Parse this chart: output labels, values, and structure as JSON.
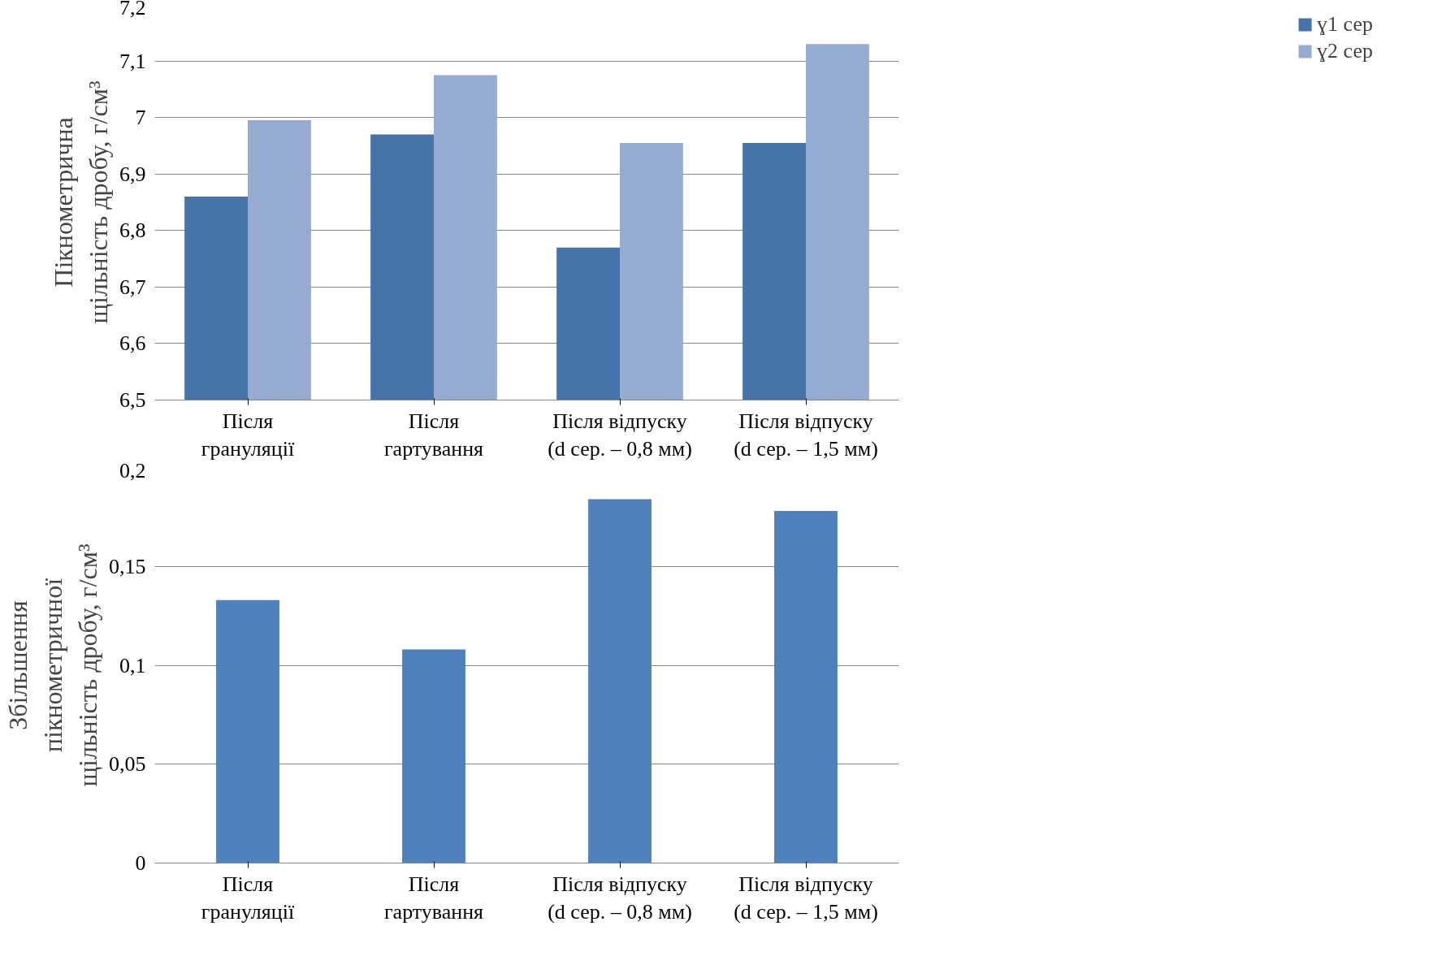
{
  "chart_data": [
    {
      "type": "bar",
      "ylabel": "Пікнометрична\nщільність дробу, г/см³",
      "categories": [
        "Після\nгрануляції",
        "Після\nгартування",
        "Після відпуску\n(d сер. – 0,8 мм)",
        "Після відпуску\n(d сер. – 1,5 мм)"
      ],
      "series": [
        {
          "name": "ɣ1 сер",
          "color": "#4674a9",
          "values": [
            6.86,
            6.97,
            6.77,
            6.955
          ]
        },
        {
          "name": "ɣ2 сер",
          "color": "#95abd1",
          "values": [
            6.995,
            7.075,
            6.955,
            7.13
          ]
        }
      ],
      "ylim": [
        6.5,
        7.2
      ],
      "yticks": [
        {
          "value": 6.5,
          "label": "6,5"
        },
        {
          "value": 6.6,
          "label": "6,6"
        },
        {
          "value": 6.7,
          "label": "6,7"
        },
        {
          "value": 6.8,
          "label": "6,8"
        },
        {
          "value": 6.9,
          "label": "6,9"
        },
        7,
        {
          "value": 7.1,
          "label": "7,1"
        },
        {
          "value": 7.2,
          "label": "7,2"
        }
      ],
      "grid": "y",
      "legend": "right"
    },
    {
      "type": "bar",
      "ylabel": "Збільшення\nпікнометричної\nщільність дробу, г/см³",
      "categories": [
        "Після\nгрануляції",
        "Після\nгартування",
        "Після відпуску\n(d сер. – 0,8 мм)",
        "Після відпуску\n(d сер. – 1,5 мм)"
      ],
      "values": [
        0.133,
        0.108,
        0.184,
        0.178
      ],
      "color": "#4f81bd",
      "ylim": [
        0,
        0.2
      ],
      "yticks": [
        0,
        {
          "value": 0.05,
          "label": "0,05"
        },
        {
          "value": 0.1,
          "label": "0,1"
        },
        {
          "value": 0.15,
          "label": "0,15"
        },
        {
          "value": 0.2,
          "label": "0,2"
        }
      ],
      "grid": "y"
    }
  ]
}
